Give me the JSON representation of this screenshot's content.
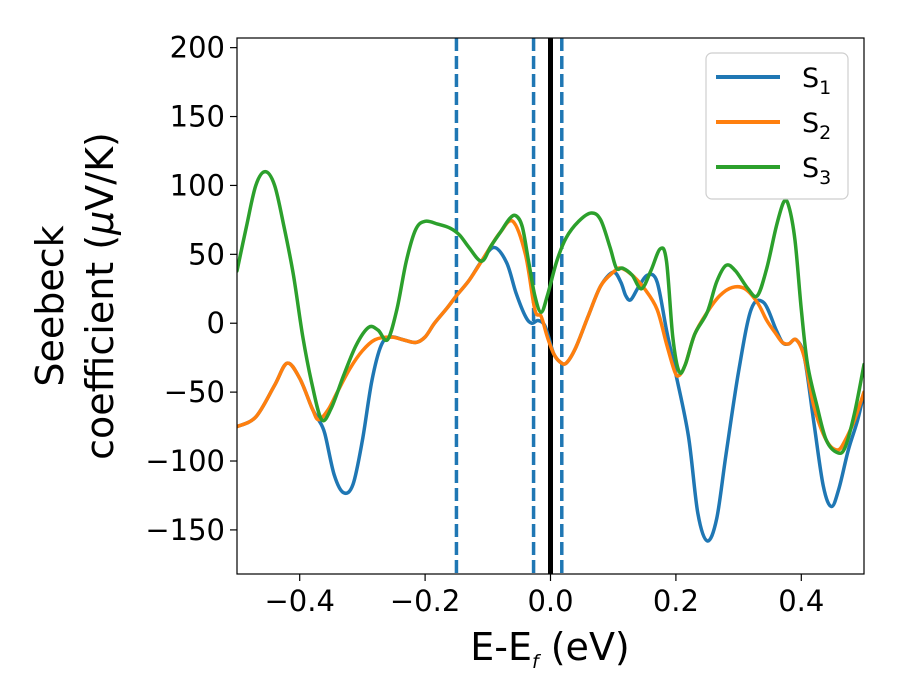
{
  "chart_data": {
    "type": "line",
    "xlabel": "E-E",
    "xlabel_sub": "f",
    "xlabel_unit": " (eV)",
    "ylabel_line1": "Seebeck",
    "ylabel_line2": "coefficient  (",
    "ylabel_mu": "μ",
    "ylabel_unit": "V/K)",
    "xlim": [
      -0.5,
      0.5
    ],
    "ylim": [
      -182,
      207
    ],
    "xticks": [
      -0.4,
      -0.2,
      0.0,
      0.2,
      0.4
    ],
    "xtick_labels": [
      "−0.4",
      "−0.2",
      "0.0",
      "0.2",
      "0.4"
    ],
    "yticks": [
      -150,
      -100,
      -50,
      0,
      50,
      100,
      150,
      200
    ],
    "ytick_labels": [
      "−150",
      "−100",
      "−50",
      "0",
      "50",
      "100",
      "150",
      "200"
    ],
    "grid": false,
    "legend_position": "top-right",
    "vlines_dashed": [
      -0.15,
      -0.027,
      0.018
    ],
    "vline_solid": 0.0,
    "colors": {
      "S1": "#1f77b4",
      "S2": "#ff7f0e",
      "S3": "#2ca02c",
      "ref": "#000000"
    },
    "series": [
      {
        "name": "S",
        "sub": "1",
        "color": "#1f77b4",
        "points": [
          [
            -0.5,
            -75
          ],
          [
            -0.47,
            -68
          ],
          [
            -0.44,
            -45
          ],
          [
            -0.42,
            -29
          ],
          [
            -0.4,
            -40
          ],
          [
            -0.38,
            -62
          ],
          [
            -0.37,
            -70
          ],
          [
            -0.36,
            -80
          ],
          [
            -0.345,
            -110
          ],
          [
            -0.33,
            -123
          ],
          [
            -0.315,
            -117
          ],
          [
            -0.3,
            -85
          ],
          [
            -0.285,
            -42
          ],
          [
            -0.27,
            -16
          ],
          [
            -0.255,
            -10
          ],
          [
            -0.235,
            -12
          ],
          [
            -0.215,
            -14
          ],
          [
            -0.2,
            -10
          ],
          [
            -0.185,
            0
          ],
          [
            -0.165,
            11
          ],
          [
            -0.15,
            20
          ],
          [
            -0.13,
            31
          ],
          [
            -0.11,
            45
          ],
          [
            -0.09,
            55
          ],
          [
            -0.07,
            44
          ],
          [
            -0.055,
            22
          ],
          [
            -0.04,
            5
          ],
          [
            -0.03,
            0
          ],
          [
            -0.02,
            2
          ],
          [
            -0.01,
            -1
          ],
          [
            -0.003,
            -10
          ],
          [
            0.005,
            -22
          ],
          [
            0.015,
            -28
          ],
          [
            0.025,
            -29
          ],
          [
            0.04,
            -18
          ],
          [
            0.06,
            5
          ],
          [
            0.08,
            27
          ],
          [
            0.1,
            37
          ],
          [
            0.112,
            30
          ],
          [
            0.12,
            20
          ],
          [
            0.128,
            17
          ],
          [
            0.14,
            26
          ],
          [
            0.155,
            35
          ],
          [
            0.17,
            30
          ],
          [
            0.185,
            -5
          ],
          [
            0.2,
            -37
          ],
          [
            0.22,
            -82
          ],
          [
            0.235,
            -138
          ],
          [
            0.25,
            -158
          ],
          [
            0.265,
            -142
          ],
          [
            0.28,
            -95
          ],
          [
            0.3,
            -35
          ],
          [
            0.32,
            10
          ],
          [
            0.34,
            15
          ],
          [
            0.36,
            -5
          ],
          [
            0.37,
            -14
          ],
          [
            0.38,
            -15
          ],
          [
            0.392,
            -12
          ],
          [
            0.405,
            -25
          ],
          [
            0.42,
            -72
          ],
          [
            0.435,
            -118
          ],
          [
            0.448,
            -133
          ],
          [
            0.46,
            -120
          ],
          [
            0.475,
            -92
          ],
          [
            0.49,
            -70
          ],
          [
            0.5,
            -50
          ]
        ]
      },
      {
        "name": "S",
        "sub": "2",
        "color": "#ff7f0e",
        "points": [
          [
            -0.5,
            -75
          ],
          [
            -0.47,
            -68
          ],
          [
            -0.44,
            -45
          ],
          [
            -0.42,
            -29
          ],
          [
            -0.4,
            -40
          ],
          [
            -0.38,
            -62
          ],
          [
            -0.37,
            -70
          ],
          [
            -0.355,
            -63
          ],
          [
            -0.34,
            -50
          ],
          [
            -0.32,
            -33
          ],
          [
            -0.3,
            -20
          ],
          [
            -0.28,
            -12
          ],
          [
            -0.255,
            -10
          ],
          [
            -0.235,
            -12
          ],
          [
            -0.215,
            -14
          ],
          [
            -0.2,
            -10
          ],
          [
            -0.185,
            0
          ],
          [
            -0.165,
            11
          ],
          [
            -0.15,
            20
          ],
          [
            -0.13,
            31
          ],
          [
            -0.11,
            45
          ],
          [
            -0.095,
            56
          ],
          [
            -0.08,
            66
          ],
          [
            -0.06,
            74
          ],
          [
            -0.04,
            50
          ],
          [
            -0.025,
            10
          ],
          [
            -0.015,
            5
          ],
          [
            -0.005,
            -10
          ],
          [
            0.005,
            -22
          ],
          [
            0.015,
            -28
          ],
          [
            0.025,
            -29
          ],
          [
            0.04,
            -18
          ],
          [
            0.06,
            5
          ],
          [
            0.08,
            27
          ],
          [
            0.1,
            37
          ],
          [
            0.112,
            40
          ],
          [
            0.13,
            35
          ],
          [
            0.15,
            25
          ],
          [
            0.17,
            10
          ],
          [
            0.185,
            -15
          ],
          [
            0.198,
            -35
          ],
          [
            0.205,
            -38
          ],
          [
            0.215,
            -30
          ],
          [
            0.23,
            -8
          ],
          [
            0.25,
            8
          ],
          [
            0.27,
            20
          ],
          [
            0.29,
            26
          ],
          [
            0.31,
            25
          ],
          [
            0.33,
            15
          ],
          [
            0.345,
            2
          ],
          [
            0.36,
            -8
          ],
          [
            0.37,
            -14
          ],
          [
            0.38,
            -15
          ],
          [
            0.392,
            -12
          ],
          [
            0.405,
            -25
          ],
          [
            0.42,
            -60
          ],
          [
            0.44,
            -85
          ],
          [
            0.458,
            -92
          ],
          [
            0.47,
            -85
          ],
          [
            0.485,
            -70
          ],
          [
            0.5,
            -50
          ]
        ]
      },
      {
        "name": "S",
        "sub": "3",
        "color": "#2ca02c",
        "points": [
          [
            -0.5,
            38
          ],
          [
            -0.485,
            70
          ],
          [
            -0.47,
            100
          ],
          [
            -0.455,
            110
          ],
          [
            -0.44,
            100
          ],
          [
            -0.425,
            70
          ],
          [
            -0.41,
            35
          ],
          [
            -0.395,
            -10
          ],
          [
            -0.38,
            -45
          ],
          [
            -0.365,
            -70
          ],
          [
            -0.35,
            -62
          ],
          [
            -0.33,
            -38
          ],
          [
            -0.31,
            -16
          ],
          [
            -0.29,
            -3
          ],
          [
            -0.275,
            -5
          ],
          [
            -0.26,
            -12
          ],
          [
            -0.245,
            10
          ],
          [
            -0.23,
            45
          ],
          [
            -0.215,
            68
          ],
          [
            -0.2,
            74
          ],
          [
            -0.18,
            72
          ],
          [
            -0.16,
            69
          ],
          [
            -0.145,
            64
          ],
          [
            -0.13,
            55
          ],
          [
            -0.11,
            45
          ],
          [
            -0.095,
            56
          ],
          [
            -0.08,
            66
          ],
          [
            -0.065,
            76
          ],
          [
            -0.055,
            78
          ],
          [
            -0.045,
            70
          ],
          [
            -0.035,
            45
          ],
          [
            -0.025,
            20
          ],
          [
            -0.015,
            8
          ],
          [
            -0.005,
            20
          ],
          [
            0.01,
            45
          ],
          [
            0.025,
            62
          ],
          [
            0.045,
            74
          ],
          [
            0.065,
            80
          ],
          [
            0.08,
            75
          ],
          [
            0.095,
            55
          ],
          [
            0.105,
            40
          ],
          [
            0.115,
            40
          ],
          [
            0.13,
            35
          ],
          [
            0.145,
            25
          ],
          [
            0.16,
            38
          ],
          [
            0.175,
            54
          ],
          [
            0.185,
            45
          ],
          [
            0.195,
            -10
          ],
          [
            0.205,
            -35
          ],
          [
            0.215,
            -30
          ],
          [
            0.23,
            -8
          ],
          [
            0.25,
            8
          ],
          [
            0.265,
            30
          ],
          [
            0.28,
            42
          ],
          [
            0.295,
            38
          ],
          [
            0.315,
            25
          ],
          [
            0.33,
            20
          ],
          [
            0.345,
            40
          ],
          [
            0.36,
            70
          ],
          [
            0.372,
            88
          ],
          [
            0.38,
            85
          ],
          [
            0.39,
            60
          ],
          [
            0.4,
            10
          ],
          [
            0.41,
            -30
          ],
          [
            0.425,
            -60
          ],
          [
            0.44,
            -85
          ],
          [
            0.458,
            -94
          ],
          [
            0.47,
            -90
          ],
          [
            0.485,
            -65
          ],
          [
            0.5,
            -30
          ]
        ]
      }
    ]
  }
}
